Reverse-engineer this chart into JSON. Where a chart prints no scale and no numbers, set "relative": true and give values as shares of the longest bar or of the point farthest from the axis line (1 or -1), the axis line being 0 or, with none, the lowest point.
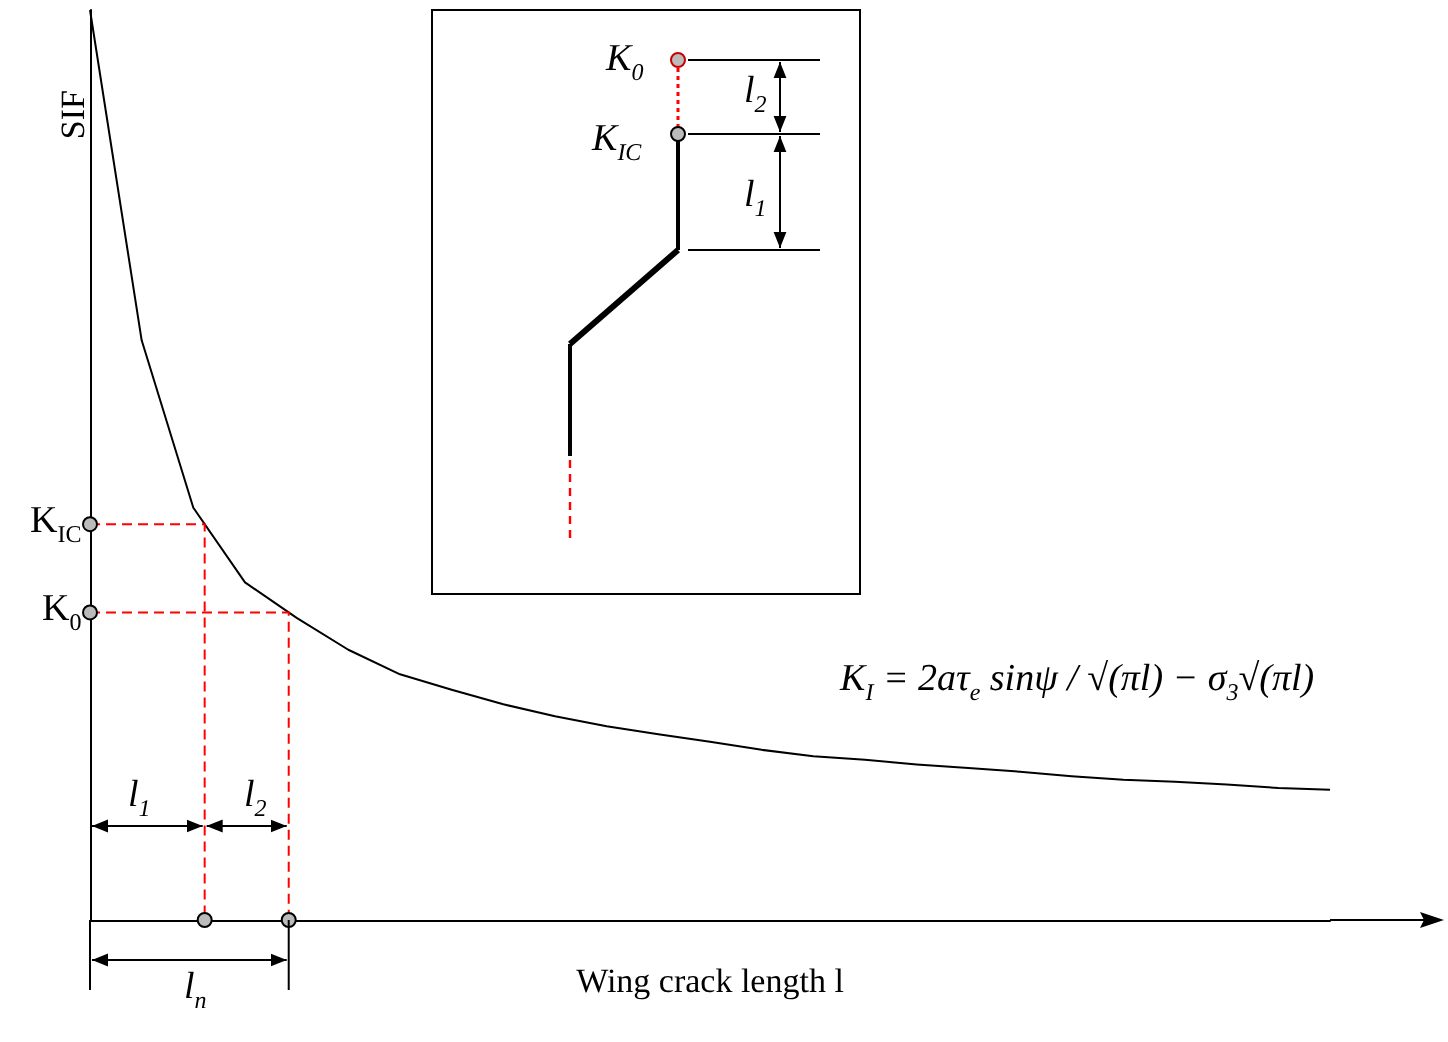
{
  "chart_data": {
    "type": "line",
    "relative": true,
    "xlabel": "Wing crack length l",
    "ylabel": "SIF",
    "categories": [
      null,
      null,
      null,
      null,
      null,
      null,
      null,
      null,
      null,
      null,
      null,
      null,
      null,
      null,
      null,
      null,
      null,
      null,
      null,
      null,
      null,
      null,
      null,
      null,
      null
    ],
    "series": [
      {
        "color": "#000000",
        "values": [
          1,
          0.637,
          0.453,
          0.371,
          0.332,
          0.297,
          0.27,
          0.253,
          0.237,
          0.224,
          0.213,
          0.204,
          0.196,
          0.187,
          0.18,
          0.176,
          0.171,
          0.167,
          0.163,
          0.158,
          0.154,
          0.152,
          0.149,
          0.145,
          0.143
        ]
      }
    ],
    "ref_lines": [
      {
        "axis": "y",
        "value": 0.435,
        "label": "K$_{IC}$",
        "color": "#ff0000",
        "line_style": "dashed"
      },
      {
        "axis": "y",
        "value": 0.338,
        "label": "K$_{0}$",
        "color": "#ff0000",
        "line_style": "dashed"
      }
    ],
    "annotations": [
      "K$_{I}$ = 2aτ$_{e}$ sinψ / √(πl) − σ$_{3}$√(πl)",
      "l$_{1}$",
      "l$_{2}$",
      "l$_{n}$",
      "K$_{0}$",
      "K$_{IC}$",
      "l$_{2}$",
      "l$_{1}$"
    ],
    "grid": false,
    "marker": "none",
    "line_style": "solid"
  }
}
